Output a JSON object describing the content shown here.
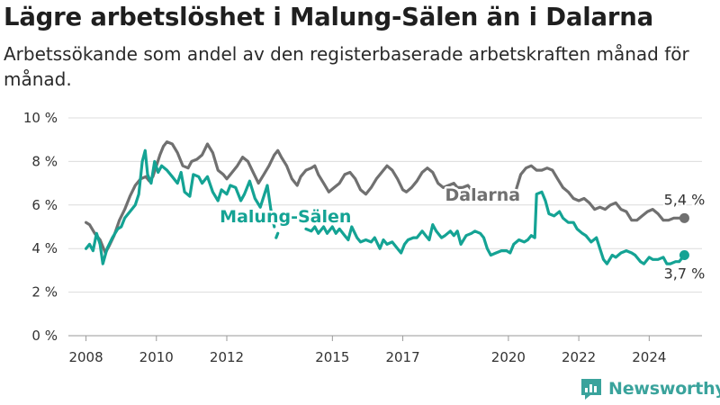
{
  "title": "Lägre arbetslöshet i Malung-Sälen än i Dalarna",
  "subtitle": "Arbetssökande som andel av den registerbaserade arbetskraften månad för månad.",
  "brand": {
    "name": "Newsworthy",
    "icon": "bar-chart-logo-icon",
    "color": "#3aa39c"
  },
  "chart_data": {
    "type": "line",
    "title": "Lägre arbetslöshet i Malung-Sälen än i Dalarna",
    "subtitle": "Arbetssökande som andel av den registerbaserade arbetskraften månad för månad.",
    "xlabel": "",
    "ylabel": "",
    "xlim": [
      2007.5,
      2025.5
    ],
    "ylim": [
      0,
      10
    ],
    "yticks": [
      0,
      2,
      4,
      6,
      8,
      10
    ],
    "ytick_labels": [
      "0 %",
      "2 %",
      "4 %",
      "6 %",
      "8 %",
      "10 %"
    ],
    "xticks": [
      2008,
      2010,
      2012,
      2015,
      2017,
      2020,
      2022,
      2024
    ],
    "xtick_labels": [
      "2008",
      "2010",
      "2012",
      "2015",
      "2017",
      "2020",
      "2022",
      "2024"
    ],
    "grid": "horizontal",
    "series": [
      {
        "name": "Dalarna",
        "color": "#707070",
        "label_x": 2018.2,
        "label_y": 6.2,
        "end_label": "5,4 %",
        "segments": [
          [
            [
              2008.0,
              5.2
            ],
            [
              2008.1,
              5.1
            ],
            [
              2008.25,
              4.7
            ],
            [
              2008.4,
              4.4
            ],
            [
              2008.5,
              4.0
            ],
            [
              2008.55,
              3.8
            ],
            [
              2008.65,
              4.1
            ],
            [
              2008.8,
              4.6
            ],
            [
              2008.95,
              5.3
            ],
            [
              2009.1,
              5.8
            ],
            [
              2009.25,
              6.4
            ],
            [
              2009.4,
              6.9
            ],
            [
              2009.55,
              7.2
            ],
            [
              2009.7,
              7.3
            ],
            [
              2009.8,
              7.1
            ],
            [
              2009.9,
              7.3
            ],
            [
              2010.0,
              7.8
            ],
            [
              2010.1,
              8.3
            ],
            [
              2010.2,
              8.7
            ],
            [
              2010.3,
              8.9
            ],
            [
              2010.45,
              8.8
            ],
            [
              2010.6,
              8.4
            ],
            [
              2010.75,
              7.8
            ],
            [
              2010.9,
              7.7
            ],
            [
              2011.0,
              8.0
            ],
            [
              2011.15,
              8.1
            ],
            [
              2011.3,
              8.3
            ],
            [
              2011.45,
              8.8
            ],
            [
              2011.6,
              8.4
            ],
            [
              2011.75,
              7.6
            ],
            [
              2011.9,
              7.4
            ],
            [
              2012.0,
              7.2
            ],
            [
              2012.15,
              7.5
            ],
            [
              2012.3,
              7.8
            ],
            [
              2012.45,
              8.2
            ],
            [
              2012.6,
              8.0
            ],
            [
              2012.75,
              7.5
            ],
            [
              2012.9,
              7.0
            ],
            [
              2013.05,
              7.4
            ],
            [
              2013.2,
              7.8
            ],
            [
              2013.35,
              8.3
            ],
            [
              2013.45,
              8.5
            ],
            [
              2013.55,
              8.2
            ],
            [
              2013.7,
              7.8
            ],
            [
              2013.85,
              7.2
            ],
            [
              2014.0,
              6.9
            ],
            [
              2014.1,
              7.3
            ],
            [
              2014.25,
              7.6
            ],
            [
              2014.4,
              7.7
            ],
            [
              2014.5,
              7.8
            ],
            [
              2014.6,
              7.4
            ],
            [
              2014.75,
              7.0
            ],
            [
              2014.9,
              6.6
            ],
            [
              2015.05,
              6.8
            ],
            [
              2015.2,
              7.0
            ],
            [
              2015.35,
              7.4
            ],
            [
              2015.5,
              7.5
            ],
            [
              2015.65,
              7.2
            ],
            [
              2015.8,
              6.7
            ],
            [
              2015.95,
              6.5
            ],
            [
              2016.1,
              6.8
            ],
            [
              2016.25,
              7.2
            ],
            [
              2016.4,
              7.5
            ],
            [
              2016.55,
              7.8
            ],
            [
              2016.7,
              7.6
            ],
            [
              2016.85,
              7.2
            ],
            [
              2017.0,
              6.7
            ],
            [
              2017.1,
              6.6
            ],
            [
              2017.25,
              6.8
            ],
            [
              2017.4,
              7.1
            ],
            [
              2017.55,
              7.5
            ],
            [
              2017.7,
              7.7
            ],
            [
              2017.85,
              7.5
            ],
            [
              2018.0,
              7.0
            ],
            [
              2018.15,
              6.8
            ],
            [
              2018.3,
              6.9
            ],
            [
              2018.45,
              7.0
            ],
            [
              2018.55,
              6.8
            ],
            [
              2018.7,
              6.8
            ],
            [
              2018.85,
              6.9
            ],
            [
              2019.0,
              6.6
            ]
          ],
          [
            [
              2020.1,
              6.5
            ],
            [
              2020.2,
              6.6
            ],
            [
              2020.35,
              7.4
            ],
            [
              2020.5,
              7.7
            ],
            [
              2020.65,
              7.8
            ],
            [
              2020.8,
              7.6
            ],
            [
              2020.95,
              7.6
            ],
            [
              2021.1,
              7.7
            ],
            [
              2021.25,
              7.6
            ],
            [
              2021.4,
              7.2
            ],
            [
              2021.55,
              6.8
            ],
            [
              2021.7,
              6.6
            ],
            [
              2021.85,
              6.3
            ],
            [
              2022.0,
              6.2
            ],
            [
              2022.15,
              6.3
            ],
            [
              2022.3,
              6.1
            ],
            [
              2022.45,
              5.8
            ],
            [
              2022.6,
              5.9
            ],
            [
              2022.75,
              5.8
            ],
            [
              2022.9,
              6.0
            ],
            [
              2023.05,
              6.1
            ],
            [
              2023.2,
              5.8
            ],
            [
              2023.35,
              5.7
            ],
            [
              2023.5,
              5.3
            ],
            [
              2023.65,
              5.3
            ],
            [
              2023.8,
              5.5
            ],
            [
              2023.95,
              5.7
            ],
            [
              2024.1,
              5.8
            ],
            [
              2024.25,
              5.6
            ],
            [
              2024.4,
              5.3
            ],
            [
              2024.55,
              5.3
            ],
            [
              2024.7,
              5.4
            ],
            [
              2024.85,
              5.4
            ],
            [
              2025.0,
              5.4
            ]
          ]
        ]
      },
      {
        "name": "Malung-Sälen",
        "color": "#14a394",
        "label_x": 2011.8,
        "label_y": 5.2,
        "end_label": "3,7 %",
        "segments": [
          [
            [
              2008.0,
              4.0
            ],
            [
              2008.1,
              4.2
            ],
            [
              2008.2,
              3.9
            ],
            [
              2008.3,
              4.7
            ],
            [
              2008.4,
              4.2
            ],
            [
              2008.48,
              3.3
            ],
            [
              2008.6,
              4.0
            ],
            [
              2008.75,
              4.5
            ],
            [
              2008.9,
              4.9
            ],
            [
              2009.0,
              5.0
            ],
            [
              2009.1,
              5.4
            ],
            [
              2009.25,
              5.7
            ],
            [
              2009.4,
              6.0
            ],
            [
              2009.5,
              6.5
            ],
            [
              2009.6,
              8.0
            ],
            [
              2009.68,
              8.5
            ],
            [
              2009.75,
              7.4
            ],
            [
              2009.85,
              7.0
            ],
            [
              2009.95,
              8.0
            ],
            [
              2010.05,
              7.5
            ],
            [
              2010.15,
              7.8
            ],
            [
              2010.3,
              7.6
            ],
            [
              2010.45,
              7.3
            ],
            [
              2010.6,
              7.0
            ],
            [
              2010.7,
              7.5
            ],
            [
              2010.8,
              6.6
            ],
            [
              2010.95,
              6.4
            ],
            [
              2011.05,
              7.4
            ],
            [
              2011.2,
              7.3
            ],
            [
              2011.3,
              7.0
            ],
            [
              2011.45,
              7.3
            ],
            [
              2011.6,
              6.6
            ],
            [
              2011.75,
              6.2
            ],
            [
              2011.85,
              6.7
            ],
            [
              2012.0,
              6.5
            ],
            [
              2012.1,
              6.9
            ],
            [
              2012.25,
              6.8
            ],
            [
              2012.4,
              6.2
            ],
            [
              2012.5,
              6.5
            ],
            [
              2012.65,
              7.1
            ],
            [
              2012.8,
              6.3
            ],
            [
              2012.95,
              5.9
            ],
            [
              2013.05,
              6.4
            ],
            [
              2013.15,
              6.9
            ],
            [
              2013.25,
              5.8
            ],
            [
              2013.35,
              5.0
            ]
          ],
          [
            [
              2013.4,
              4.5
            ],
            [
              2013.45,
              4.7
            ]
          ],
          [
            [
              2014.25,
              4.9
            ],
            [
              2014.4,
              4.8
            ],
            [
              2014.5,
              5.0
            ],
            [
              2014.6,
              4.7
            ],
            [
              2014.75,
              5.0
            ],
            [
              2014.85,
              4.7
            ],
            [
              2015.0,
              5.0
            ],
            [
              2015.1,
              4.7
            ],
            [
              2015.2,
              4.9
            ],
            [
              2015.35,
              4.6
            ],
            [
              2015.45,
              4.4
            ],
            [
              2015.55,
              5.0
            ],
            [
              2015.7,
              4.5
            ],
            [
              2015.8,
              4.3
            ],
            [
              2015.95,
              4.4
            ],
            [
              2016.1,
              4.3
            ],
            [
              2016.2,
              4.5
            ],
            [
              2016.35,
              4.0
            ],
            [
              2016.45,
              4.4
            ],
            [
              2016.55,
              4.2
            ],
            [
              2016.7,
              4.3
            ],
            [
              2016.85,
              4.0
            ],
            [
              2016.95,
              3.8
            ],
            [
              2017.05,
              4.2
            ],
            [
              2017.15,
              4.4
            ],
            [
              2017.3,
              4.5
            ],
            [
              2017.4,
              4.5
            ],
            [
              2017.55,
              4.8
            ],
            [
              2017.65,
              4.6
            ],
            [
              2017.75,
              4.4
            ],
            [
              2017.85,
              5.1
            ],
            [
              2017.95,
              4.8
            ],
            [
              2018.1,
              4.5
            ],
            [
              2018.2,
              4.6
            ],
            [
              2018.35,
              4.8
            ],
            [
              2018.45,
              4.6
            ],
            [
              2018.55,
              4.8
            ],
            [
              2018.65,
              4.2
            ],
            [
              2018.8,
              4.6
            ],
            [
              2018.95,
              4.7
            ],
            [
              2019.05,
              4.8
            ],
            [
              2019.2,
              4.7
            ],
            [
              2019.3,
              4.5
            ],
            [
              2019.4,
              4.0
            ],
            [
              2019.5,
              3.7
            ],
            [
              2019.65,
              3.8
            ],
            [
              2019.8,
              3.9
            ],
            [
              2019.95,
              3.9
            ],
            [
              2020.05,
              3.8
            ],
            [
              2020.15,
              4.2
            ],
            [
              2020.3,
              4.4
            ],
            [
              2020.45,
              4.3
            ],
            [
              2020.55,
              4.4
            ],
            [
              2020.65,
              4.6
            ],
            [
              2020.75,
              4.5
            ],
            [
              2020.8,
              6.5
            ],
            [
              2020.95,
              6.6
            ],
            [
              2021.05,
              6.2
            ],
            [
              2021.15,
              5.6
            ],
            [
              2021.3,
              5.5
            ],
            [
              2021.45,
              5.7
            ],
            [
              2021.55,
              5.4
            ],
            [
              2021.7,
              5.2
            ],
            [
              2021.85,
              5.2
            ],
            [
              2021.95,
              4.9
            ],
            [
              2022.1,
              4.7
            ],
            [
              2022.2,
              4.6
            ],
            [
              2022.35,
              4.3
            ],
            [
              2022.5,
              4.5
            ],
            [
              2022.6,
              4.0
            ],
            [
              2022.7,
              3.5
            ],
            [
              2022.8,
              3.3
            ],
            [
              2022.95,
              3.7
            ],
            [
              2023.05,
              3.6
            ],
            [
              2023.2,
              3.8
            ],
            [
              2023.35,
              3.9
            ],
            [
              2023.5,
              3.8
            ],
            [
              2023.6,
              3.7
            ],
            [
              2023.75,
              3.4
            ],
            [
              2023.85,
              3.3
            ],
            [
              2024.0,
              3.6
            ],
            [
              2024.1,
              3.5
            ],
            [
              2024.25,
              3.5
            ],
            [
              2024.4,
              3.6
            ],
            [
              2024.5,
              3.3
            ],
            [
              2024.6,
              3.3
            ],
            [
              2024.75,
              3.4
            ],
            [
              2024.85,
              3.4
            ],
            [
              2025.0,
              3.7
            ]
          ]
        ]
      }
    ]
  }
}
